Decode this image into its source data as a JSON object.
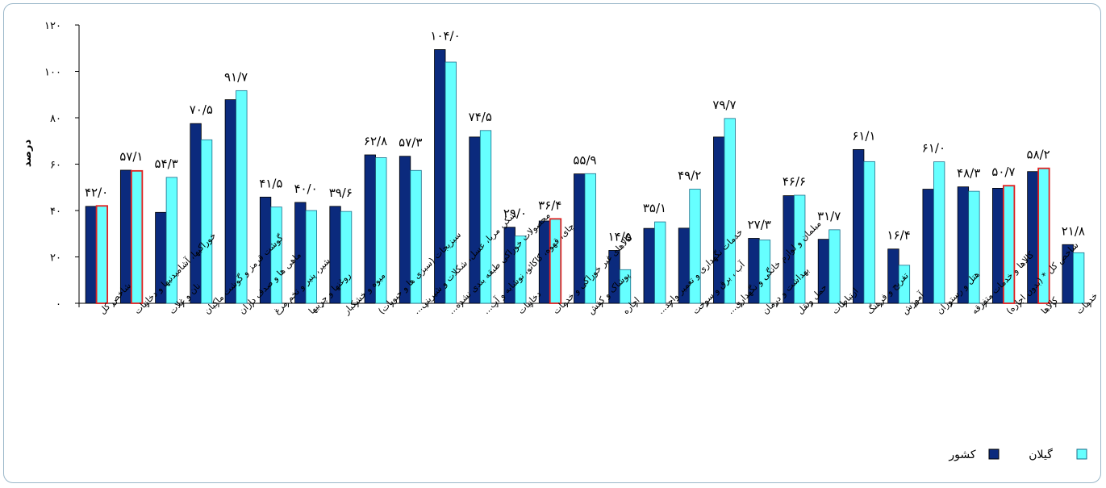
{
  "chart_data": {
    "type": "bar",
    "ylabel": "درصد",
    "ylim": [
      0,
      120
    ],
    "yticks": [
      "۰",
      "۲۰",
      "۴۰",
      "۶۰",
      "۸۰",
      "۱۰۰",
      "۱۲۰"
    ],
    "grid": false,
    "legend_position": "bottom-right",
    "colors": {
      "country": "#0b2a7d",
      "gilan": "#66ffff",
      "highlight_border": "#e02020",
      "axis": "#000000",
      "frame": "#9bb7c9"
    },
    "categories": [
      "شاخص کل",
      "خوراکیها، آشامیدنیها و دخانیات",
      "نان و غلات",
      "گوشت قرمز و گوشت ماکیان",
      "ماهی ها و صدف داران",
      "شیر، پنیر و تخم مرغ",
      "روغنها و چربیها",
      "میوه و خشکبار",
      "سبزیجات (سبزی ها و حبوبات)",
      "شکر، مربا، عسل، شکلات و شیرینی...",
      "محصولات خوراکی طبقه بندی نشده...",
      "چای، قهوه، کاکائو، نوشابه و آب...",
      "دخانیات",
      "کالاهای غیر خوراکی و خدمات",
      "پوشاک و کفش",
      "اجاره",
      "خدمات نگهداری و تعمیر واحد...",
      "آب ، برق و سوخت",
      "مبلمان و لوازم خانگی و نگهداری...",
      "بهداشت و درمان",
      "حمل ونقل",
      "ارتباطات",
      "تفریح و فرهنگ",
      "آموزش",
      "هتل و رستوران",
      "کالاها و خدمات متفرقه",
      "شاخص کل * (بدون اجاره)",
      "کالاها",
      "خدمات"
    ],
    "highlighted": [
      0,
      1,
      13,
      26,
      27
    ],
    "series": [
      {
        "name": "کشور",
        "values": [
          41.8,
          57.4,
          39.2,
          77.5,
          87.8,
          45.8,
          43.5,
          41.8,
          64.0,
          63.4,
          109.4,
          71.7,
          32.8,
          35.5,
          55.8,
          22.8,
          32.3,
          32.4,
          71.7,
          28.0,
          46.4,
          27.6,
          66.3,
          23.4,
          49.2,
          50.2,
          49.6,
          56.8,
          25.3
        ]
      },
      {
        "name": "گیلان",
        "values": [
          42.0,
          57.1,
          54.3,
          70.5,
          91.7,
          41.5,
          40.0,
          39.6,
          62.8,
          57.3,
          104.0,
          74.5,
          29.0,
          36.4,
          55.9,
          14.5,
          35.1,
          49.2,
          79.7,
          27.3,
          46.6,
          31.7,
          61.1,
          16.4,
          61.0,
          48.3,
          50.7,
          58.2,
          21.8
        ]
      }
    ],
    "data_labels": [
      "۴۲/۰",
      "۵۷/۱",
      "۵۴/۳",
      "۷۰/۵",
      "۹۱/۷",
      "۴۱/۵",
      "۴۰/۰",
      "۳۹/۶",
      "۶۲/۸",
      "۵۷/۳",
      "۱۰۴/۰",
      "۷۴/۵",
      "۲۹/۰",
      "۳۶/۴",
      "۵۵/۹",
      "۱۴/۵",
      "۳۵/۱",
      "۴۹/۲",
      "۷۹/۷",
      "۲۷/۳",
      "۴۶/۶",
      "۳۱/۷",
      "۶۱/۱",
      "۱۶/۴",
      "۶۱/۰",
      "۴۸/۳",
      "۵۰/۷",
      "۵۸/۲",
      "۲۱/۸"
    ]
  }
}
